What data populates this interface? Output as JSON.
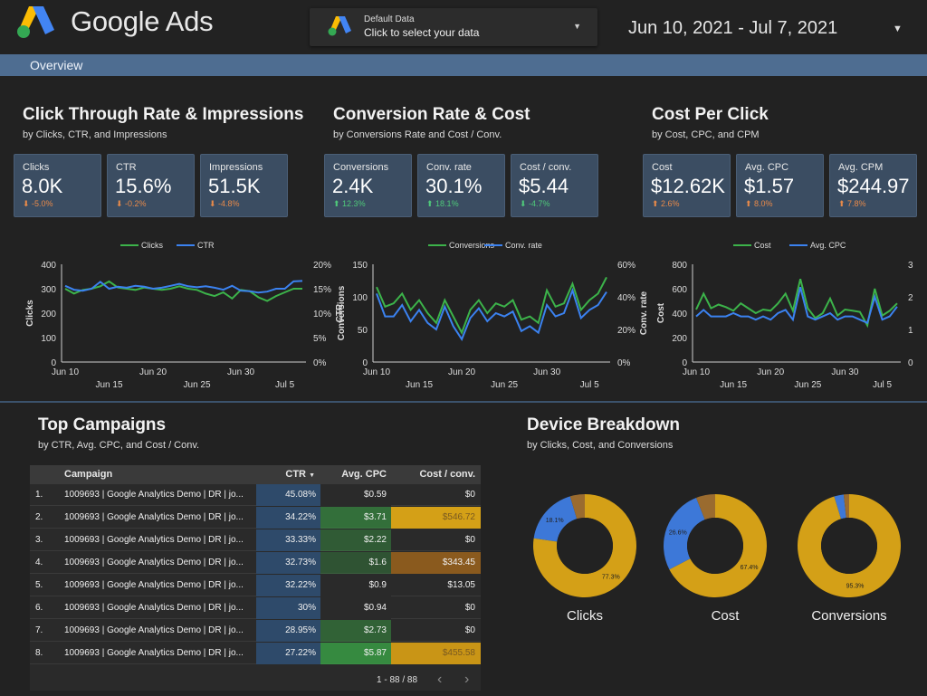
{
  "header": {
    "brand": "Google Ads",
    "logo_icon": "google-ads-logo-icon",
    "data_selector": {
      "title": "Default Data",
      "subtitle": "Click to select your data"
    },
    "date_range": "Jun 10, 2021 - Jul 7, 2021"
  },
  "nav": {
    "tabs": [
      {
        "label": "Overview"
      }
    ]
  },
  "sections": {
    "ctr": {
      "title": "Click Through Rate & Impressions",
      "subtitle": "by Clicks, CTR, and Impressions",
      "cards": [
        {
          "label": "Clicks",
          "value": "8.0K",
          "delta": "-5.0%",
          "dir": "down"
        },
        {
          "label": "CTR",
          "value": "15.6%",
          "delta": "-0.2%",
          "dir": "down"
        },
        {
          "label": "Impressions",
          "value": "51.5K",
          "delta": "-4.8%",
          "dir": "down"
        }
      ]
    },
    "conv": {
      "title": "Conversion Rate & Cost",
      "subtitle": "by Conversions Rate and Cost / Conv.",
      "cards": [
        {
          "label": "Conversions",
          "value": "2.4K",
          "delta": "12.3%",
          "dir": "up"
        },
        {
          "label": "Conv. rate",
          "value": "30.1%",
          "delta": "18.1%",
          "dir": "up"
        },
        {
          "label": "Cost / conv.",
          "value": "$5.44",
          "delta": "-4.7%",
          "dir": "down-good"
        }
      ]
    },
    "cpc": {
      "title": "Cost Per Click",
      "subtitle": "by Cost, CPC, and CPM",
      "cards": [
        {
          "label": "Cost",
          "value": "$12.62K",
          "delta": "2.6%",
          "dir": "up-bad"
        },
        {
          "label": "Avg. CPC",
          "value": "$1.57",
          "delta": "8.0%",
          "dir": "up-bad"
        },
        {
          "label": "Avg. CPM",
          "value": "$244.97",
          "delta": "7.8%",
          "dir": "up-bad"
        }
      ]
    },
    "campaigns": {
      "title": "Top Campaigns",
      "subtitle": "by CTR, Avg. CPC, and Cost / Conv."
    },
    "devices": {
      "title": "Device Breakdown",
      "subtitle": "by Clicks, Cost, and Conversions"
    }
  },
  "colors": {
    "green": "#3cb34a",
    "blue": "#3b82f0",
    "gold": "#d4a017",
    "brown": "#9a6b2f",
    "donut_blue": "#3d78d8"
  },
  "chart_data": [
    {
      "type": "line",
      "legend": [
        "Clicks",
        "CTR"
      ],
      "x_ticks_top": [
        "Jun 10",
        "Jun 20",
        "Jun 30"
      ],
      "x_ticks_bottom": [
        "Jun 15",
        "Jun 25",
        "Jul 5"
      ],
      "ylabel_left": "Clicks",
      "ylabel_right": "CTR",
      "y_left_ticks": [
        "400",
        "300",
        "200",
        "100",
        "0"
      ],
      "y_right_ticks": [
        "20%",
        "15%",
        "10%",
        "5%",
        "0%"
      ],
      "ylim_left": [
        0,
        400
      ],
      "ylim_right": [
        0,
        20
      ],
      "series": [
        {
          "name": "Clicks",
          "axis": "left",
          "color": "#3cb34a",
          "values": [
            300,
            280,
            295,
            300,
            310,
            330,
            305,
            300,
            295,
            305,
            300,
            295,
            300,
            310,
            300,
            295,
            280,
            270,
            285,
            260,
            295,
            290,
            265,
            250,
            270,
            285,
            300,
            300
          ]
        },
        {
          "name": "CTR",
          "axis": "right",
          "color": "#3b82f0",
          "values": [
            15.6,
            14.8,
            14.6,
            15.0,
            16.4,
            15.0,
            15.4,
            15.2,
            15.6,
            15.4,
            15.0,
            15.2,
            15.6,
            16.0,
            15.5,
            15.3,
            15.5,
            15.2,
            14.8,
            15.6,
            14.6,
            14.5,
            14.2,
            14.4,
            15.0,
            15.0,
            16.5,
            16.6
          ]
        }
      ]
    },
    {
      "type": "line",
      "legend": [
        "Conversions",
        "Conv. rate"
      ],
      "x_ticks_top": [
        "Jun 10",
        "Jun 20",
        "Jun 30"
      ],
      "x_ticks_bottom": [
        "Jun 15",
        "Jun 25",
        "Jul 5"
      ],
      "ylabel_left": "Conversions",
      "ylabel_right": "Conv. rate",
      "y_left_ticks": [
        "150",
        "100",
        "50",
        "0"
      ],
      "y_right_ticks": [
        "60%",
        "40%",
        "20%",
        "0%"
      ],
      "ylim_left": [
        0,
        150
      ],
      "ylim_right": [
        0,
        60
      ],
      "series": [
        {
          "name": "Conversions",
          "axis": "left",
          "color": "#3cb34a",
          "values": [
            115,
            85,
            90,
            105,
            80,
            95,
            75,
            60,
            95,
            70,
            45,
            80,
            95,
            75,
            90,
            85,
            95,
            65,
            70,
            60,
            110,
            85,
            90,
            120,
            80,
            95,
            105,
            130
          ]
        },
        {
          "name": "Conv. rate",
          "axis": "right",
          "color": "#3b82f0",
          "values": [
            42,
            28,
            28,
            35,
            25,
            32,
            24,
            20,
            34,
            22,
            14,
            27,
            33,
            25,
            30,
            28,
            31,
            19,
            22,
            18,
            35,
            28,
            30,
            44,
            27,
            32,
            35,
            43
          ]
        }
      ]
    },
    {
      "type": "line",
      "legend": [
        "Cost",
        "Avg. CPC"
      ],
      "x_ticks_top": [
        "Jun 10",
        "Jun 20",
        "Jun 30"
      ],
      "x_ticks_bottom": [
        "Jun 15",
        "Jun 25",
        "Jul 5"
      ],
      "ylabel_left": "Cost",
      "ylabel_right": "Avg. CPC",
      "y_left_ticks": [
        "800",
        "600",
        "400",
        "200",
        "0"
      ],
      "y_right_ticks": [
        "3",
        "2",
        "1",
        "0"
      ],
      "ylim_left": [
        0,
        800
      ],
      "ylim_right": [
        0,
        3
      ],
      "series": [
        {
          "name": "Cost",
          "axis": "left",
          "color": "#3cb34a",
          "values": [
            430,
            560,
            440,
            470,
            450,
            420,
            480,
            440,
            400,
            430,
            420,
            480,
            560,
            420,
            680,
            440,
            360,
            400,
            520,
            380,
            430,
            420,
            410,
            300,
            600,
            380,
            420,
            480
          ]
        },
        {
          "name": "Avg. CPC",
          "axis": "right",
          "color": "#3b82f0",
          "values": [
            1.4,
            1.6,
            1.4,
            1.4,
            1.4,
            1.5,
            1.4,
            1.4,
            1.3,
            1.4,
            1.3,
            1.5,
            1.6,
            1.3,
            2.3,
            1.4,
            1.3,
            1.4,
            1.5,
            1.3,
            1.4,
            1.4,
            1.3,
            1.2,
            2.0,
            1.3,
            1.4,
            1.7
          ]
        }
      ]
    },
    {
      "type": "pie",
      "title": "Clicks",
      "values": [
        77.3,
        18.1,
        4.6
      ],
      "slice_labels": [
        "77.3%",
        "18.1%",
        ""
      ],
      "colors": [
        "#d4a017",
        "#3d78d8",
        "#9a6b2f"
      ]
    },
    {
      "type": "pie",
      "title": "Cost",
      "values": [
        67.4,
        26.6,
        6.0
      ],
      "slice_labels": [
        "67.4%",
        "26.6%",
        ""
      ],
      "colors": [
        "#d4a017",
        "#3d78d8",
        "#9a6b2f"
      ]
    },
    {
      "type": "pie",
      "title": "Conversions",
      "values": [
        95.3,
        3.0,
        1.7
      ],
      "slice_labels": [
        "95.3%",
        "",
        ""
      ],
      "colors": [
        "#d4a017",
        "#3d78d8",
        "#9a6b2f"
      ]
    }
  ],
  "table": {
    "columns": [
      "Campaign",
      "CTR",
      "Avg. CPC",
      "Cost / conv."
    ],
    "sort_indicator": "▼",
    "rows": [
      {
        "num": "1.",
        "campaign": "1009693 | Google Analytics Demo | DR | jo...",
        "ctr": "45.08%",
        "cpc": "$0.59",
        "cost": "$0",
        "cpc_fill": 0.1,
        "cost_fill": 0.0
      },
      {
        "num": "2.",
        "campaign": "1009693 | Google Analytics Demo | DR | jo...",
        "ctr": "34.22%",
        "cpc": "$3.71",
        "cost": "$546.72",
        "cpc_fill": 0.63,
        "cost_fill": 1.0
      },
      {
        "num": "3.",
        "campaign": "1009693 | Google Analytics Demo | DR | jo...",
        "ctr": "33.33%",
        "cpc": "$2.22",
        "cost": "$0",
        "cpc_fill": 0.38,
        "cost_fill": 0.0
      },
      {
        "num": "4.",
        "campaign": "1009693 | Google Analytics Demo | DR | jo...",
        "ctr": "32.73%",
        "cpc": "$1.6",
        "cost": "$343.45",
        "cpc_fill": 0.27,
        "cost_fill": 0.63
      },
      {
        "num": "5.",
        "campaign": "1009693 | Google Analytics Demo | DR | jo...",
        "ctr": "32.22%",
        "cpc": "$0.9",
        "cost": "$13.05",
        "cpc_fill": 0.15,
        "cost_fill": 0.02
      },
      {
        "num": "6.",
        "campaign": "1009693 | Google Analytics Demo | DR | jo...",
        "ctr": "30%",
        "cpc": "$0.94",
        "cost": "$0",
        "cpc_fill": 0.16,
        "cost_fill": 0.0
      },
      {
        "num": "7.",
        "campaign": "1009693 | Google Analytics Demo | DR | jo...",
        "ctr": "28.95%",
        "cpc": "$2.73",
        "cost": "$0",
        "cpc_fill": 0.47,
        "cost_fill": 0.0
      },
      {
        "num": "8.",
        "campaign": "1009693 | Google Analytics Demo | DR | jo...",
        "ctr": "27.22%",
        "cpc": "$5.87",
        "cost": "$455.58",
        "cpc_fill": 1.0,
        "cost_fill": 0.83
      }
    ],
    "pagination": {
      "text": "1 - 88 / 88",
      "prev": "‹",
      "next": "›"
    }
  }
}
